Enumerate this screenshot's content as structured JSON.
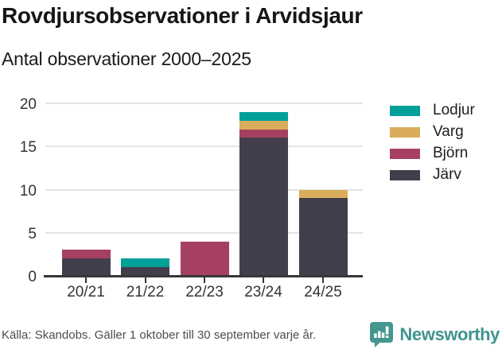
{
  "header": {
    "title": "Rovdjursobservationer i Arvidsjaur",
    "subtitle": "Antal observationer 2000–2025"
  },
  "chart_data": {
    "type": "bar",
    "stacked": true,
    "title": "Rovdjursobservationer i Arvidsjaur",
    "subtitle": "Antal observationer 2000–2025",
    "categories": [
      "20/21",
      "21/22",
      "22/23",
      "23/24",
      "24/25"
    ],
    "series": [
      {
        "name": "Järv",
        "color": "#423E4C",
        "values": [
          2,
          1,
          0,
          16,
          9
        ]
      },
      {
        "name": "Björn",
        "color": "#A64060",
        "values": [
          1,
          0,
          4,
          1,
          0
        ]
      },
      {
        "name": "Varg",
        "color": "#D9AD5B",
        "values": [
          0,
          0,
          0,
          1,
          1
        ]
      },
      {
        "name": "Lodjur",
        "color": "#00A099",
        "values": [
          0,
          1,
          0,
          1,
          0
        ]
      }
    ],
    "totals": [
      3,
      2,
      4,
      19,
      10
    ],
    "ylim": [
      0,
      20
    ],
    "yticks": [
      0,
      5,
      10,
      15,
      20
    ],
    "grid": true,
    "legend_position": "right",
    "legend_order": [
      "Lodjur",
      "Varg",
      "Björn",
      "Järv"
    ]
  },
  "footer": {
    "source": "Källa: Skandobs. Gäller 1 oktober till 30 september varje år.",
    "brand": "Newsworthy"
  },
  "colors": {
    "accent_teal": "#00A099",
    "gold": "#D9AD5B",
    "crimson": "#A64060",
    "dark_slate": "#423E4C",
    "brand_teal": "#3E948E",
    "grid": "#E4E4E4",
    "axis": "#383838"
  }
}
